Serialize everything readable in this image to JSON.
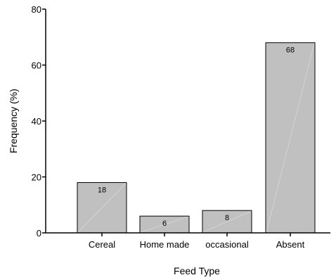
{
  "chart_data": {
    "type": "bar",
    "categories": [
      "Cereal",
      "Home made",
      "occasional",
      "Absent"
    ],
    "values": [
      18,
      6,
      8,
      68
    ],
    "data_labels": [
      "18",
      "6",
      "8",
      "68"
    ],
    "title": "",
    "xlabel": "Feed Type",
    "ylabel": "Frequency (%)",
    "ylim": [
      0,
      80
    ],
    "yticks": [
      0,
      20,
      40,
      60,
      80
    ],
    "grid": false,
    "bar_color": "#c0c0c0",
    "bar_edge_color": "#000000"
  }
}
